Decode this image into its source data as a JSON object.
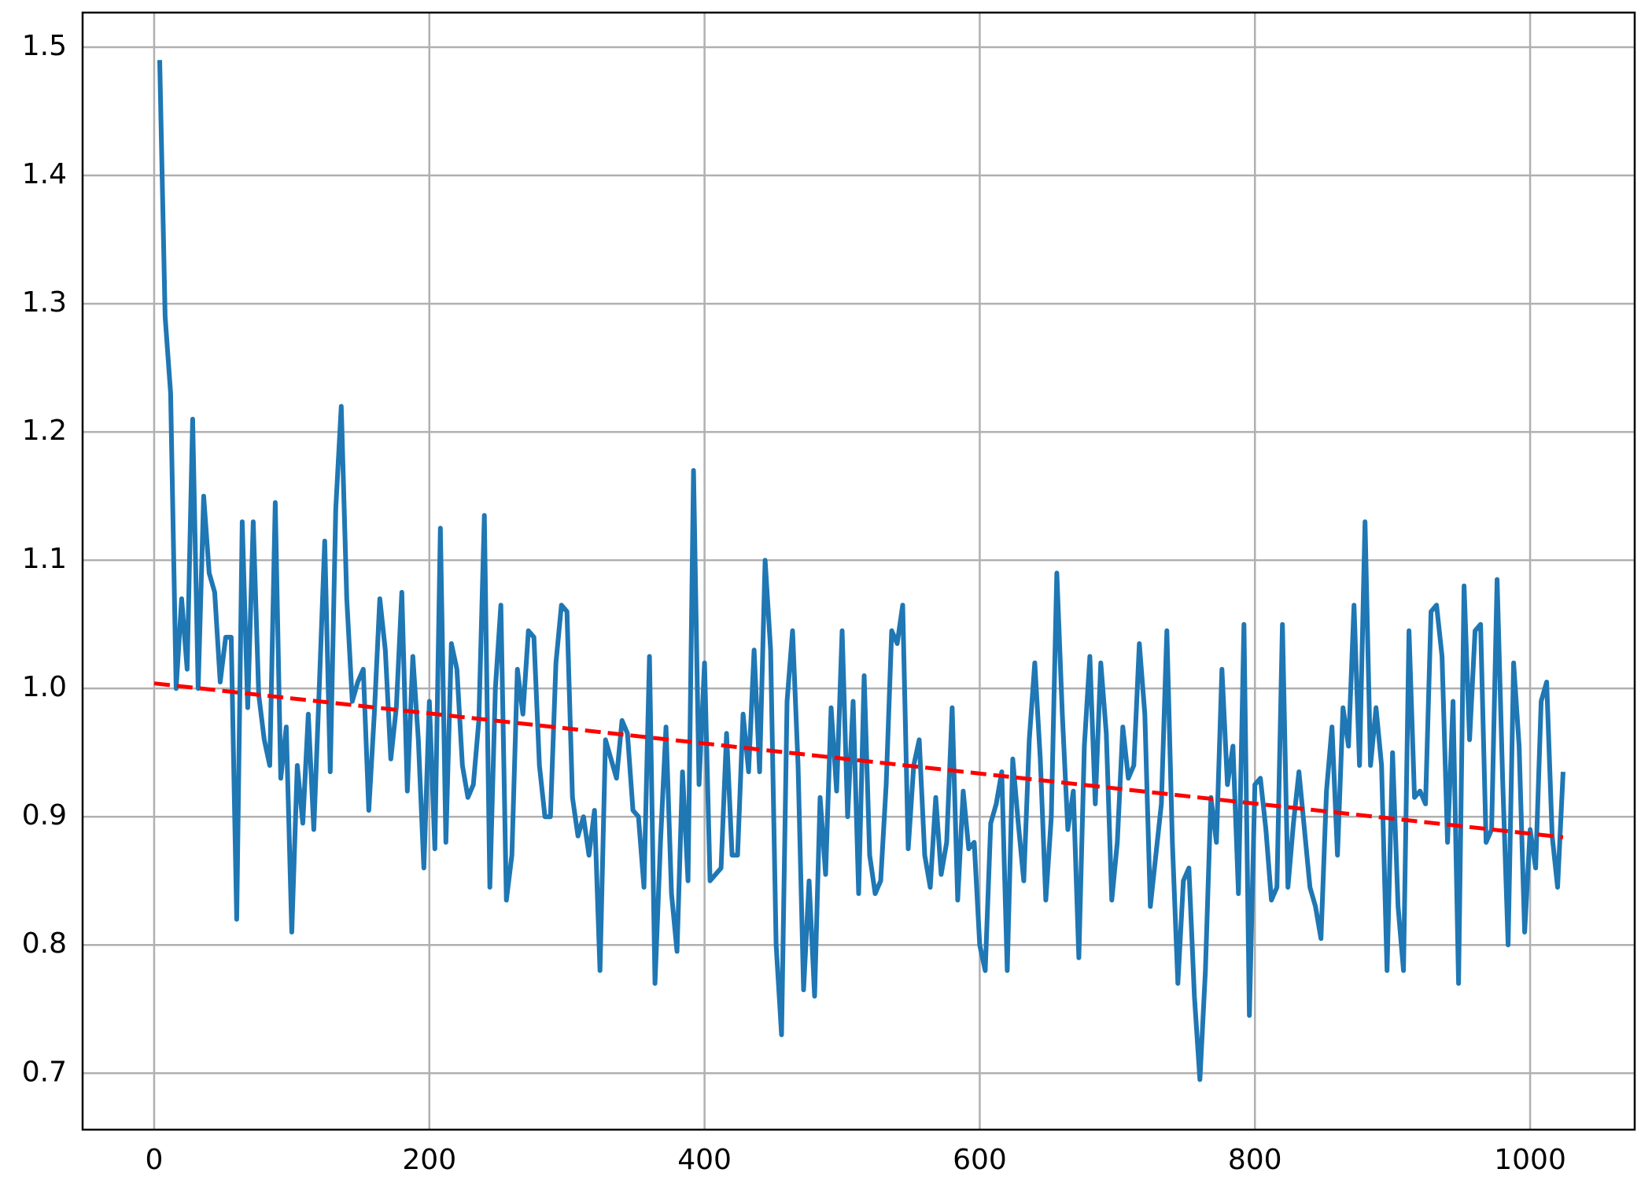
{
  "chart_data": {
    "type": "line",
    "xlim": [
      -52,
      1076
    ],
    "xticks": [
      0,
      200,
      400,
      600,
      800,
      1000
    ],
    "ylim": [
      0.656,
      1.527
    ],
    "yticks": [
      {
        "value": 0.7,
        "label": "0.7"
      },
      {
        "value": 0.8,
        "label": "0.8"
      },
      {
        "value": 0.9,
        "label": "0.9"
      },
      {
        "value": 1.0,
        "label": "1.0"
      },
      {
        "value": 1.1,
        "label": "1.1"
      },
      {
        "value": 1.2,
        "label": "1.2"
      },
      {
        "value": 1.3,
        "label": "1.3"
      },
      {
        "value": 1.4,
        "label": "1.4"
      },
      {
        "value": 1.5,
        "label": "1.5"
      }
    ],
    "grid": true,
    "series": [
      {
        "color": "#1f77b4",
        "dashed": false,
        "x": [
          4,
          8,
          12,
          16,
          20,
          24,
          28,
          32,
          36,
          40,
          44,
          48,
          52,
          56,
          60,
          64,
          68,
          72,
          76,
          80,
          84,
          88,
          92,
          96,
          100,
          104,
          108,
          112,
          116,
          120,
          124,
          128,
          132,
          136,
          140,
          144,
          148,
          152,
          156,
          160,
          164,
          168,
          172,
          176,
          180,
          184,
          188,
          192,
          196,
          200,
          204,
          208,
          212,
          216,
          220,
          224,
          228,
          232,
          236,
          240,
          244,
          248,
          252,
          256,
          260,
          264,
          268,
          272,
          276,
          280,
          284,
          288,
          292,
          296,
          300,
          304,
          308,
          312,
          316,
          320,
          324,
          328,
          332,
          336,
          340,
          344,
          348,
          352,
          356,
          360,
          364,
          368,
          372,
          376,
          380,
          384,
          388,
          392,
          396,
          400,
          404,
          408,
          412,
          416,
          420,
          424,
          428,
          432,
          436,
          440,
          444,
          448,
          452,
          456,
          460,
          464,
          468,
          472,
          476,
          480,
          484,
          488,
          492,
          496,
          500,
          504,
          508,
          512,
          516,
          520,
          524,
          528,
          532,
          536,
          540,
          544,
          548,
          552,
          556,
          560,
          564,
          568,
          572,
          576,
          580,
          584,
          588,
          592,
          596,
          600,
          604,
          608,
          612,
          616,
          620,
          624,
          628,
          632,
          636,
          640,
          644,
          648,
          652,
          656,
          660,
          664,
          668,
          672,
          676,
          680,
          684,
          688,
          692,
          696,
          700,
          704,
          708,
          712,
          716,
          720,
          724,
          728,
          732,
          736,
          740,
          744,
          748,
          752,
          756,
          760,
          764,
          768,
          772,
          776,
          780,
          784,
          788,
          792,
          796,
          800,
          804,
          808,
          812,
          816,
          820,
          824,
          828,
          832,
          836,
          840,
          844,
          848,
          852,
          856,
          860,
          864,
          868,
          872,
          876,
          880,
          884,
          888,
          892,
          896,
          900,
          904,
          908,
          912,
          916,
          920,
          924,
          928,
          932,
          936,
          940,
          944,
          948,
          952,
          956,
          960,
          964,
          968,
          972,
          976,
          980,
          984,
          988,
          992,
          996,
          1000,
          1004,
          1008,
          1012,
          1016,
          1020,
          1024
        ],
        "values": [
          1.49,
          1.29,
          1.23,
          1.0,
          1.07,
          1.015,
          1.21,
          1.0,
          1.15,
          1.09,
          1.075,
          1.005,
          1.04,
          1.04,
          0.82,
          1.13,
          0.985,
          1.13,
          0.995,
          0.96,
          0.94,
          1.145,
          0.93,
          0.97,
          0.81,
          0.94,
          0.895,
          0.98,
          0.89,
          1.0,
          1.115,
          0.935,
          1.14,
          1.22,
          1.07,
          0.99,
          1.005,
          1.015,
          0.905,
          0.98,
          1.07,
          1.03,
          0.945,
          0.985,
          1.075,
          0.92,
          1.025,
          0.96,
          0.86,
          0.99,
          0.875,
          1.125,
          0.88,
          1.035,
          1.015,
          0.94,
          0.915,
          0.925,
          0.975,
          1.135,
          0.845,
          1.0,
          1.065,
          0.835,
          0.87,
          1.015,
          0.98,
          1.045,
          1.04,
          0.94,
          0.9,
          0.9,
          1.02,
          1.065,
          1.06,
          0.915,
          0.885,
          0.9,
          0.87,
          0.905,
          0.78,
          0.96,
          0.945,
          0.93,
          0.975,
          0.965,
          0.905,
          0.9,
          0.845,
          1.025,
          0.77,
          0.88,
          0.97,
          0.84,
          0.795,
          0.935,
          0.85,
          1.17,
          0.925,
          1.02,
          0.85,
          0.855,
          0.86,
          0.965,
          0.87,
          0.87,
          0.98,
          0.935,
          1.03,
          0.935,
          1.1,
          1.03,
          0.8,
          0.73,
          0.99,
          1.045,
          0.94,
          0.765,
          0.85,
          0.76,
          0.915,
          0.855,
          0.985,
          0.92,
          1.045,
          0.9,
          0.99,
          0.84,
          1.01,
          0.87,
          0.84,
          0.85,
          0.925,
          1.045,
          1.035,
          1.065,
          0.875,
          0.94,
          0.96,
          0.87,
          0.845,
          0.915,
          0.855,
          0.88,
          0.985,
          0.835,
          0.92,
          0.875,
          0.88,
          0.8,
          0.78,
          0.895,
          0.91,
          0.935,
          0.78,
          0.945,
          0.895,
          0.85,
          0.96,
          1.02,
          0.945,
          0.835,
          0.9,
          1.09,
          0.98,
          0.89,
          0.92,
          0.79,
          0.955,
          1.025,
          0.91,
          1.02,
          0.965,
          0.835,
          0.88,
          0.97,
          0.93,
          0.94,
          1.035,
          0.98,
          0.83,
          0.87,
          0.91,
          1.045,
          0.88,
          0.77,
          0.85,
          0.86,
          0.76,
          0.695,
          0.78,
          0.915,
          0.88,
          1.015,
          0.925,
          0.955,
          0.84,
          1.05,
          0.745,
          0.925,
          0.93,
          0.89,
          0.835,
          0.845,
          1.05,
          0.845,
          0.895,
          0.935,
          0.89,
          0.845,
          0.83,
          0.805,
          0.92,
          0.97,
          0.87,
          0.985,
          0.955,
          1.065,
          0.94,
          1.13,
          0.94,
          0.985,
          0.94,
          0.78,
          0.95,
          0.83,
          0.78,
          1.045,
          0.915,
          0.92,
          0.91,
          1.06,
          1.065,
          1.025,
          0.88,
          0.99,
          0.77,
          1.08,
          0.96,
          1.045,
          1.05,
          0.88,
          0.89,
          1.085,
          0.93,
          0.8,
          1.02,
          0.955,
          0.81,
          0.89,
          0.86,
          0.99,
          1.005,
          0.885,
          0.845,
          0.935
        ]
      },
      {
        "color": "#ff0000",
        "dashed": true,
        "x": [
          0,
          1024
        ],
        "values": [
          1.004,
          0.884
        ]
      }
    ]
  }
}
